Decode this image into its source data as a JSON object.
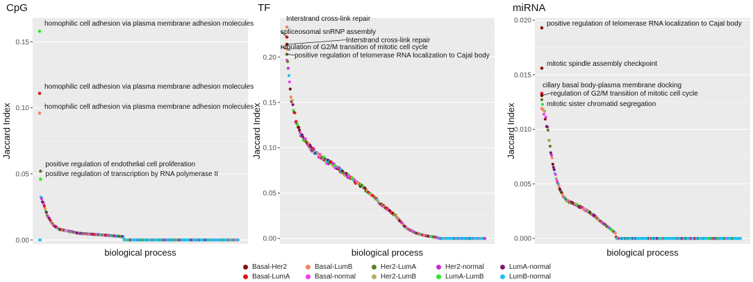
{
  "colors": {
    "Basal-Her2": "#7f1010",
    "Basal-LumA": "#e0161a",
    "Basal-LumB": "#f4845f",
    "Basal-normal": "#f03cf0",
    "Her2-LumA": "#5c7d22",
    "Her2-LumB": "#b5aa5f",
    "Her2-normal": "#c52fd6",
    "LumA-LumB": "#2ee82e",
    "LumA-normal": "#7a1a72",
    "LumB-normal": "#1ec2f2"
  },
  "legend": {
    "entries": [
      "Basal-Her2",
      "Basal-LumB",
      "Her2-LumA",
      "Her2-normal",
      "LumA-normal",
      "Basal-LumA",
      "Basal-normal",
      "Her2-LumB",
      "LumA-LumB",
      "LumB-normal"
    ]
  },
  "chart_data": [
    {
      "type": "scatter",
      "title": "CpG",
      "xlabel": "biological process",
      "ylabel": "Jaccard Index",
      "ylim": [
        -0.003,
        0.168
      ],
      "yticks": [
        0.0,
        0.05,
        0.1,
        0.15
      ],
      "ytick_labels": [
        "0.00",
        "0.05",
        "0.10",
        "0.15"
      ],
      "n_points": 290,
      "curve_profile": [
        [
          0.005,
          0.033
        ],
        [
          0.02,
          0.027
        ],
        [
          0.04,
          0.018
        ],
        [
          0.07,
          0.011
        ],
        [
          0.1,
          0.008
        ],
        [
          0.2,
          0.005
        ],
        [
          0.3,
          0.004
        ],
        [
          0.42,
          0.0025
        ],
        [
          0.425,
          0.0
        ],
        [
          1.0,
          0.0
        ]
      ],
      "highlighted": [
        {
          "rank": 0.0,
          "value": 0.158,
          "group": "LumA-LumB",
          "label": "homophilic cell adhesion via plasma membrane adhesion molecules"
        },
        {
          "rank": 0.0,
          "value": 0.111,
          "group": "Basal-LumA",
          "label": "homophilic cell adhesion via plasma membrane adhesion molecules"
        },
        {
          "rank": 0.0,
          "value": 0.096,
          "group": "Basal-LumB",
          "label": "homophilic cell adhesion via plasma membrane adhesion molecules"
        },
        {
          "rank": 0.005,
          "value": 0.052,
          "group": "Her2-LumA",
          "label": "positive regulation of endothelial cell proliferation"
        },
        {
          "rank": 0.005,
          "value": 0.046,
          "group": "LumA-LumB",
          "label": "positive regulation of transcription by RNA polymerase II"
        }
      ]
    },
    {
      "type": "scatter",
      "title": "TF",
      "xlabel": "biological process",
      "ylabel": "Jaccard Index",
      "ylim": [
        -0.006,
        0.243
      ],
      "yticks": [
        0.0,
        0.05,
        0.1,
        0.15,
        0.2
      ],
      "ytick_labels": [
        "0.00",
        "0.05",
        "0.10",
        "0.15",
        "0.20"
      ],
      "n_points": 300,
      "curve_profile": [
        [
          0.0,
          0.2
        ],
        [
          0.02,
          0.155
        ],
        [
          0.04,
          0.135
        ],
        [
          0.06,
          0.12
        ],
        [
          0.1,
          0.105
        ],
        [
          0.15,
          0.093
        ],
        [
          0.25,
          0.078
        ],
        [
          0.35,
          0.062
        ],
        [
          0.42,
          0.05
        ],
        [
          0.48,
          0.037
        ],
        [
          0.55,
          0.025
        ],
        [
          0.6,
          0.012
        ],
        [
          0.65,
          0.006
        ],
        [
          0.7,
          0.003
        ],
        [
          0.76,
          0.001
        ],
        [
          0.77,
          0.0
        ],
        [
          1.0,
          0.0
        ]
      ],
      "highlighted": [
        {
          "rank": 0.0,
          "value": 0.233,
          "group": "Basal-LumB",
          "label": "Interstrand cross-link repair"
        },
        {
          "rank": 0.0,
          "value": 0.222,
          "group": "Basal-LumA",
          "label": "spliceosomal snRNP assembly"
        },
        {
          "rank": 0.0,
          "value": 0.214,
          "group": "Basal-Her2",
          "label": "Interstrand cross-link repair"
        },
        {
          "rank": 0.0,
          "value": 0.209,
          "group": "Basal-LumB",
          "label": "regulation of G2/M transition of mitotic cell cycle"
        },
        {
          "rank": 0.0,
          "value": 0.203,
          "group": "Her2-LumA",
          "label": "positive regulation of telomerase RNA localization to Cajal body"
        }
      ]
    },
    {
      "type": "scatter",
      "title": "miRNA",
      "xlabel": "biological process",
      "ylabel": "Jaccard Index",
      "ylim": [
        -0.0005,
        0.0202
      ],
      "yticks": [
        0.0,
        0.005,
        0.01,
        0.015,
        0.02
      ],
      "ytick_labels": [
        "0.000",
        "0.005",
        "0.010",
        "0.015",
        "0.020"
      ],
      "n_points": 290,
      "curve_profile": [
        [
          0.0,
          0.0125
        ],
        [
          0.025,
          0.0105
        ],
        [
          0.04,
          0.0085
        ],
        [
          0.06,
          0.0065
        ],
        [
          0.09,
          0.0045
        ],
        [
          0.12,
          0.0035
        ],
        [
          0.18,
          0.003
        ],
        [
          0.25,
          0.0023
        ],
        [
          0.3,
          0.0015
        ],
        [
          0.35,
          0.0008
        ],
        [
          0.37,
          0.0005
        ],
        [
          0.375,
          0.0
        ],
        [
          1.0,
          0.0
        ]
      ],
      "highlighted": [
        {
          "rank": 0.0,
          "value": 0.0193,
          "group": "Basal-Her2",
          "label": "positive regulation of telomerase RNA localization to Cajal body"
        },
        {
          "rank": 0.0,
          "value": 0.0156,
          "group": "Basal-Her2",
          "label": "mitotic spindle assembly checkpoint"
        },
        {
          "rank": 0.0,
          "value": 0.0133,
          "group": "Basal-LumA",
          "label": "cillary basal body-plasma membrane docking"
        },
        {
          "rank": 0.0,
          "value": 0.0131,
          "group": "Basal-Her2",
          "label": "regulation of G2/M transition of mitotic cell cycle"
        },
        {
          "rank": 0.0,
          "value": 0.0119,
          "group": "Basal-LumB",
          "label": "mitotic sister chromatid segregation"
        }
      ]
    }
  ]
}
